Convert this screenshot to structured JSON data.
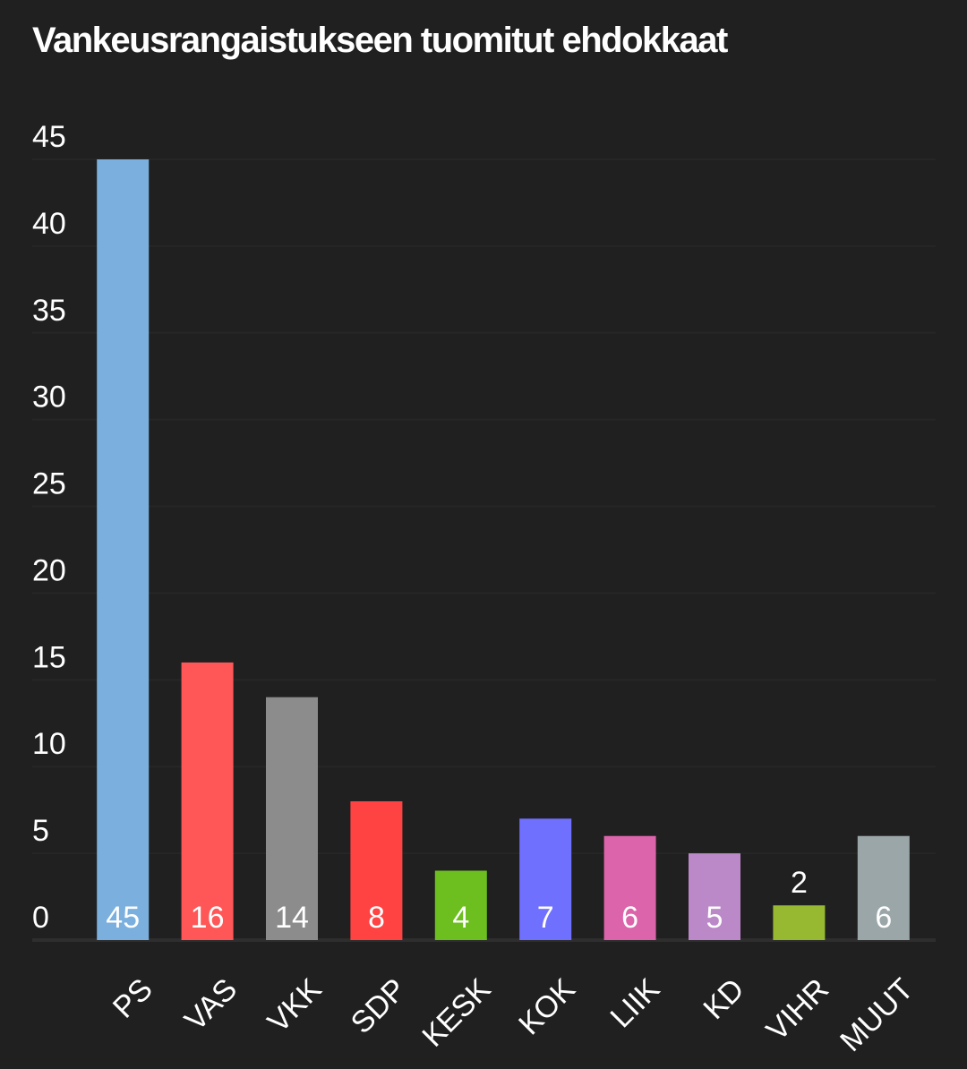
{
  "chart_data": {
    "type": "bar",
    "title": "Vankeusrangaistukseen tuomitut ehdokkaat",
    "categories": [
      "PS",
      "VAS",
      "VKK",
      "SDP",
      "KESK",
      "KOK",
      "LIIK",
      "KD",
      "VIHR",
      "MUUT"
    ],
    "values": [
      45,
      16,
      14,
      8,
      4,
      7,
      6,
      5,
      2,
      6
    ],
    "colors": [
      "#7aafde",
      "#ff5757",
      "#8c8c8c",
      "#ff4242",
      "#6cbf1e",
      "#7070ff",
      "#dc64aa",
      "#bb88c8",
      "#97b932",
      "#9ba6a9"
    ],
    "ylim": [
      0,
      45
    ],
    "yticks": [
      0,
      5,
      10,
      15,
      20,
      25,
      30,
      35,
      40,
      45
    ],
    "grid": true
  }
}
